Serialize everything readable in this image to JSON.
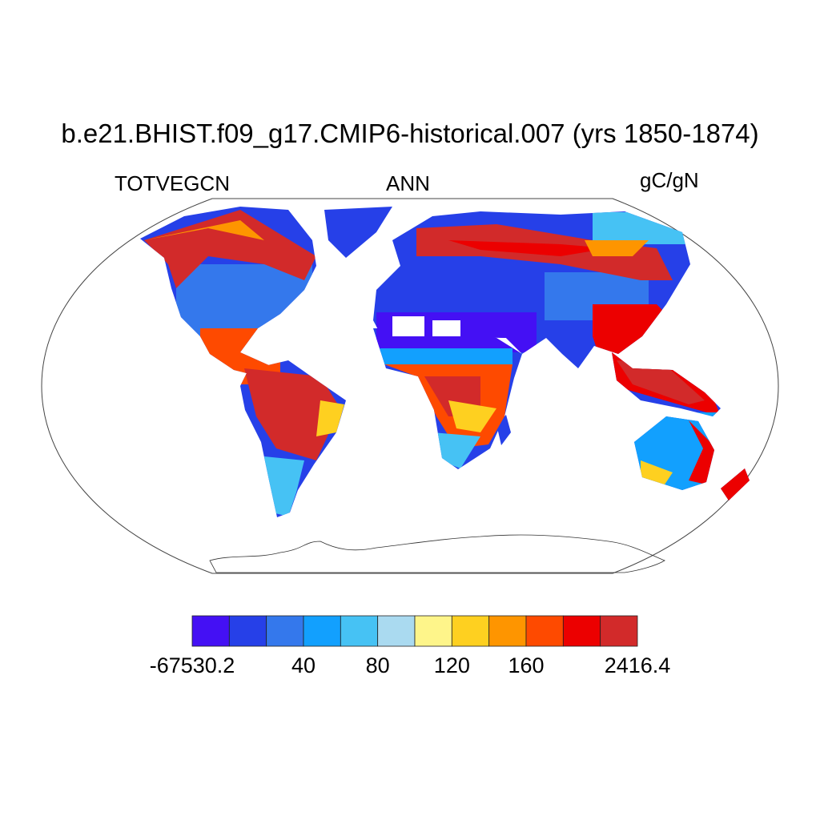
{
  "title": "b.e21.BHIST.f09_g17.CMIP6-historical.007 (yrs 1850-1874)",
  "left_string": "TOTVEGCN",
  "center_string": "ANN",
  "right_string": "gC/gN",
  "chart_data": {
    "type": "heatmap",
    "projection": "Robinson",
    "variable": "TOTVEGCN",
    "season": "ANN",
    "units": "gC/gN",
    "colorbar": {
      "colors": [
        "#4410f4",
        "#2640e8",
        "#3478ec",
        "#12a0fe",
        "#46c2f4",
        "#aadaf0",
        "#fef58a",
        "#fed020",
        "#fe9500",
        "#fe4a00",
        "#ec0000",
        "#d22a2a"
      ],
      "labels": [
        {
          "text": "-67530.2",
          "boundary": 0
        },
        {
          "text": "40",
          "boundary": 3
        },
        {
          "text": "80",
          "boundary": 5
        },
        {
          "text": "120",
          "boundary": 7
        },
        {
          "text": "160",
          "boundary": 9
        },
        {
          "text": "2416.4",
          "boundary": 12
        }
      ]
    },
    "regions": [
      {
        "name": "boreal forests",
        "level": "high (red)"
      },
      {
        "name": "Amazon",
        "level": "high (red)"
      },
      {
        "name": "Central Africa",
        "level": "high (red/orange)"
      },
      {
        "name": "Southeast Asia",
        "level": "high (red)"
      },
      {
        "name": "Sahara/Arabia",
        "level": "low (purple/blue)"
      },
      {
        "name": "Australia interior",
        "level": "low (light blue)"
      },
      {
        "name": "Eurasia mid-latitudes",
        "level": "low (blue)"
      }
    ]
  }
}
